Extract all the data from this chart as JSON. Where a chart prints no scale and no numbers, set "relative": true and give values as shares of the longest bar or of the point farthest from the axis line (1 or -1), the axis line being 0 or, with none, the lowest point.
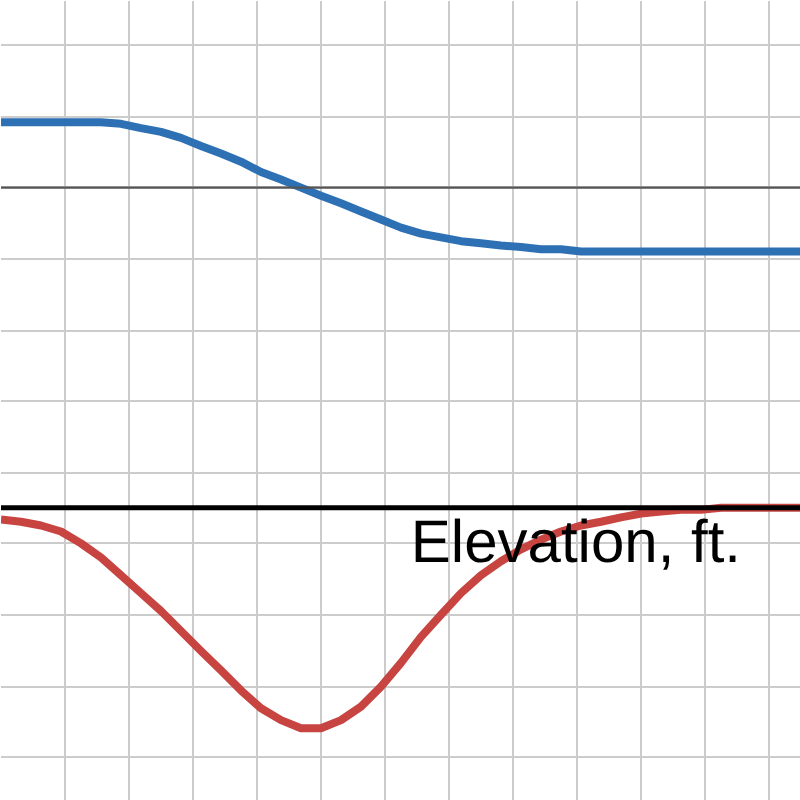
{
  "chart_data": {
    "type": "line",
    "relative": true,
    "grid": true,
    "categories": [
      null,
      null,
      null,
      null,
      null,
      null,
      null,
      null,
      null,
      null,
      null,
      null,
      null,
      null,
      null,
      null,
      null,
      null,
      null,
      null,
      null,
      null,
      null,
      null,
      null,
      null,
      null,
      null,
      null,
      null,
      null,
      null,
      null,
      null,
      null,
      null,
      null,
      null,
      null,
      null,
      null
    ],
    "series": [
      {
        "color": "#2d70b3",
        "values": [
          0.121,
          0.121,
          0.121,
          0.121,
          0.121,
          0.121,
          0.118,
          0.11,
          0.103,
          0.092,
          0.077,
          0.063,
          0.048,
          0.029,
          0.015,
          0,
          -0.015,
          -0.029,
          -0.044,
          -0.059,
          -0.074,
          -0.085,
          -0.092,
          -0.099,
          -0.103,
          -0.107,
          -0.11,
          -0.114,
          -0.114,
          -0.118,
          -0.118,
          -0.118,
          -0.118,
          -0.118,
          -0.118,
          -0.118,
          -0.118,
          -0.118,
          -0.118,
          -0.118,
          -0.118
        ]
      },
      {
        "color": "#c74440",
        "values": [
          -0.614,
          -0.618,
          -0.625,
          -0.636,
          -0.658,
          -0.684,
          -0.717,
          -0.75,
          -0.783,
          -0.82,
          -0.857,
          -0.893,
          -0.93,
          -0.963,
          -0.985,
          -1,
          -1,
          -0.985,
          -0.96,
          -0.923,
          -0.879,
          -0.831,
          -0.79,
          -0.75,
          -0.717,
          -0.691,
          -0.669,
          -0.651,
          -0.636,
          -0.625,
          -0.618,
          -0.61,
          -0.603,
          -0.599,
          -0.596,
          -0.596,
          -0.592,
          -0.592,
          -0.592,
          -0.592,
          -0.592
        ]
      }
    ],
    "ref_lines": [
      {
        "axis": "y",
        "value": -0.592,
        "label": "Elevation, ft.",
        "color": "#000000"
      }
    ],
    "line_style": "solid",
    "marker": "none"
  }
}
